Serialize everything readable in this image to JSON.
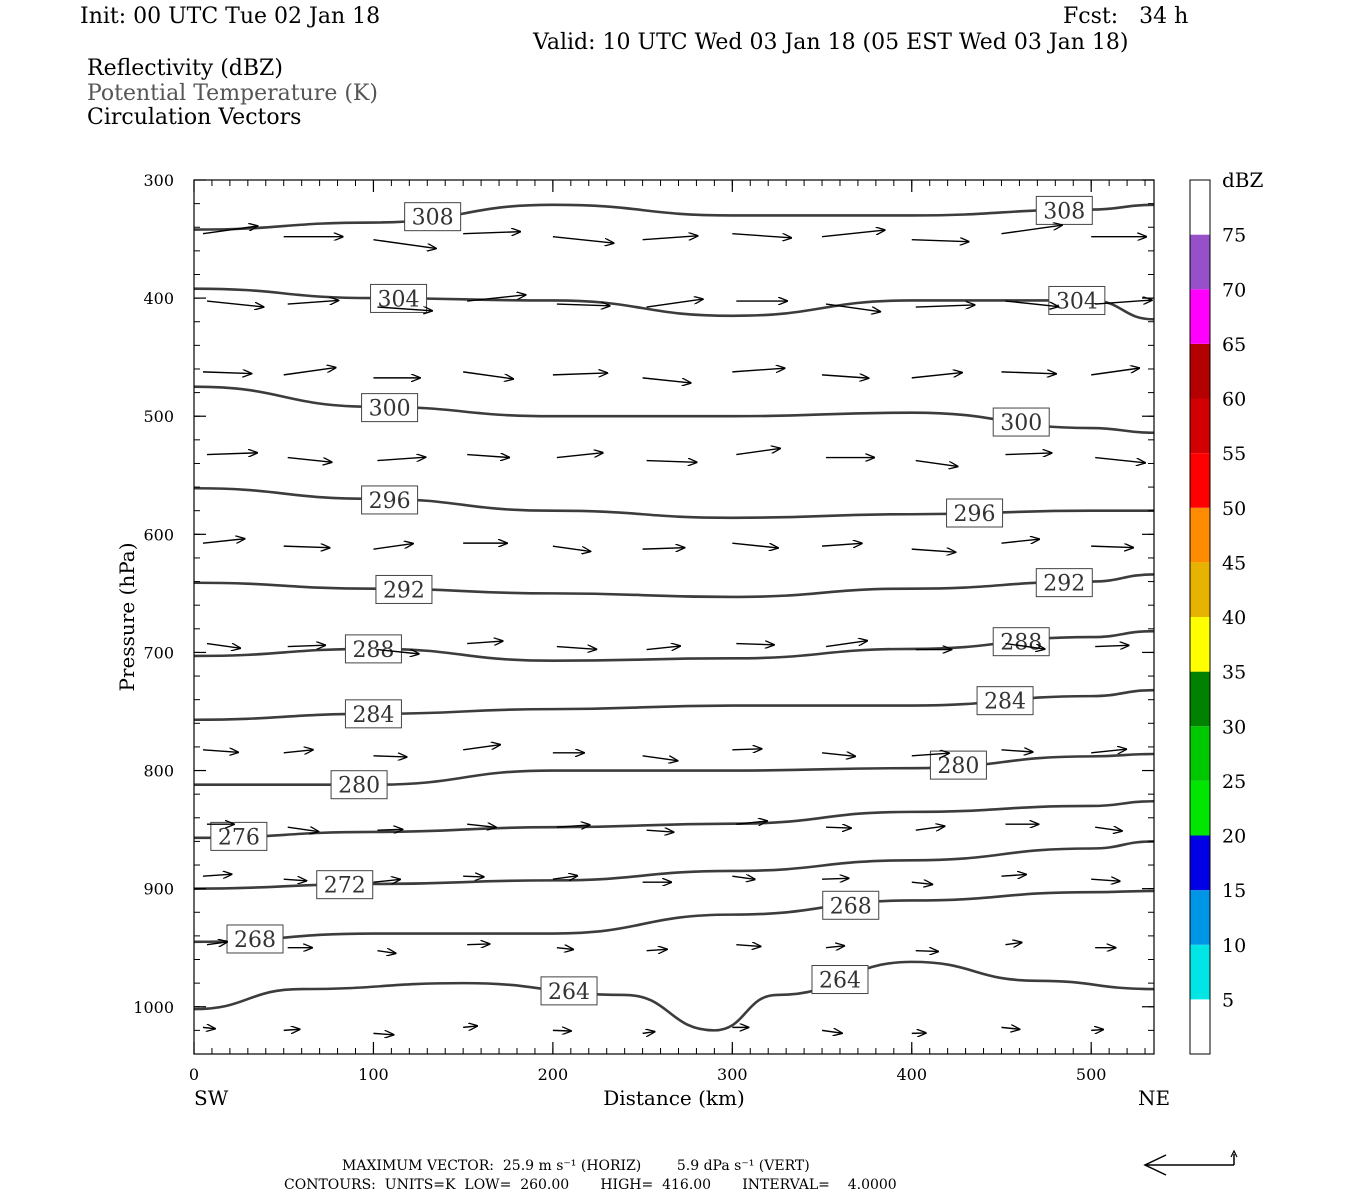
{
  "header": {
    "init": "Init: 00 UTC Tue 02 Jan 18",
    "fcst": "Fcst:   34 h",
    "valid": "Valid: 10 UTC Wed 03 Jan 18 (05 EST Wed 03 Jan 18)",
    "field1": "Reflectivity (dBZ)",
    "field2": "Potential Temperature (K)",
    "field3": "Circulation Vectors"
  },
  "footer": {
    "max_vector": "MAXIMUM VECTOR:  25.9 m s⁻¹ (HORIZ)        5.9 dPa s⁻¹ (VERT)",
    "contours": "CONTOURS:  UNITS=K  LOW=  260.00       HIGH=  416.00       INTERVAL=    4.0000"
  },
  "chart_data": {
    "type": "line",
    "xlabel": "Distance (km)",
    "ylabel": "Pressure (hPa)",
    "x_left_label": "SW",
    "x_right_label": "NE",
    "xlim": [
      0,
      535
    ],
    "ylim": [
      300,
      1040
    ],
    "y_inverted": true,
    "x_ticks": [
      0,
      100,
      200,
      300,
      400,
      500
    ],
    "y_ticks": [
      300,
      400,
      500,
      600,
      700,
      800,
      900,
      1000
    ],
    "grid": false,
    "colorbar": {
      "title": "dBZ",
      "labels": [
        "5",
        "10",
        "15",
        "20",
        "25",
        "30",
        "35",
        "40",
        "45",
        "50",
        "55",
        "60",
        "65",
        "70",
        "75"
      ],
      "colors": [
        "#ffffff",
        "#00e6e6",
        "#0096e6",
        "#0000e6",
        "#00e600",
        "#00c800",
        "#008200",
        "#ffff00",
        "#e6b400",
        "#ff8c00",
        "#ff0000",
        "#d20000",
        "#b40000",
        "#ff00ff",
        "#9650c8",
        "#ffffff"
      ]
    },
    "isentropes": [
      {
        "value": "308",
        "x": [
          0,
          100,
          200,
          300,
          400,
          500,
          535
        ],
        "p": [
          342,
          336,
          321,
          330,
          330,
          325,
          321
        ],
        "labels_x": [
          133,
          485
        ]
      },
      {
        "value": "304",
        "x": [
          0,
          100,
          200,
          300,
          400,
          500,
          535
        ],
        "p": [
          392,
          400,
          402,
          415,
          402,
          402,
          418
        ],
        "labels_x": [
          114,
          492
        ]
      },
      {
        "value": "300",
        "x": [
          0,
          100,
          200,
          300,
          400,
          500,
          535
        ],
        "p": [
          475,
          492,
          500,
          500,
          497,
          510,
          514
        ],
        "labels_x": [
          109,
          461
        ]
      },
      {
        "value": "296",
        "x": [
          0,
          100,
          200,
          300,
          400,
          500,
          535
        ],
        "p": [
          561,
          570,
          580,
          586,
          583,
          580,
          580
        ],
        "labels_x": [
          109,
          435
        ]
      },
      {
        "value": "292",
        "x": [
          0,
          100,
          200,
          300,
          400,
          500,
          535
        ],
        "p": [
          641,
          646,
          650,
          653,
          646,
          640,
          634
        ],
        "labels_x": [
          117,
          485
        ]
      },
      {
        "value": "288",
        "x": [
          0,
          100,
          200,
          300,
          400,
          500,
          535
        ],
        "p": [
          703,
          697,
          707,
          705,
          697,
          687,
          682
        ],
        "labels_x": [
          100,
          461
        ]
      },
      {
        "value": "284",
        "x": [
          0,
          100,
          200,
          300,
          400,
          500,
          535
        ],
        "p": [
          757,
          752,
          748,
          745,
          745,
          737,
          732
        ],
        "labels_x": [
          100,
          452
        ]
      },
      {
        "value": "280",
        "x": [
          0,
          100,
          200,
          300,
          400,
          500,
          535
        ],
        "p": [
          812,
          812,
          800,
          800,
          798,
          788,
          786
        ],
        "labels_x": [
          92,
          426
        ]
      },
      {
        "value": "276",
        "x": [
          0,
          100,
          200,
          300,
          400,
          500,
          535
        ],
        "p": [
          857,
          852,
          848,
          845,
          835,
          830,
          826
        ],
        "labels_x": [
          25
        ]
      },
      {
        "value": "272",
        "x": [
          0,
          100,
          200,
          300,
          400,
          500,
          535
        ],
        "p": [
          900,
          896,
          893,
          885,
          876,
          866,
          860
        ],
        "labels_x": [
          84
        ]
      },
      {
        "value": "268",
        "x": [
          0,
          100,
          200,
          300,
          400,
          500,
          535
        ],
        "p": [
          945,
          938,
          938,
          922,
          910,
          903,
          902
        ],
        "labels_x": [
          34,
          366
        ]
      },
      {
        "value": "264",
        "x": [
          0,
          60,
          150,
          240,
          290,
          325,
          400,
          470,
          535
        ],
        "p": [
          1002,
          985,
          980,
          990,
          1020,
          990,
          962,
          978,
          985
        ],
        "labels_x": [
          209,
          360
        ]
      }
    ],
    "vector_rows_p": [
      348,
      405,
      465,
      535,
      610,
      695,
      785,
      848,
      892,
      950,
      1020
    ],
    "vector_cols_x": [
      5,
      50,
      100,
      150,
      200,
      250,
      300,
      350,
      400,
      450,
      500
    ]
  }
}
